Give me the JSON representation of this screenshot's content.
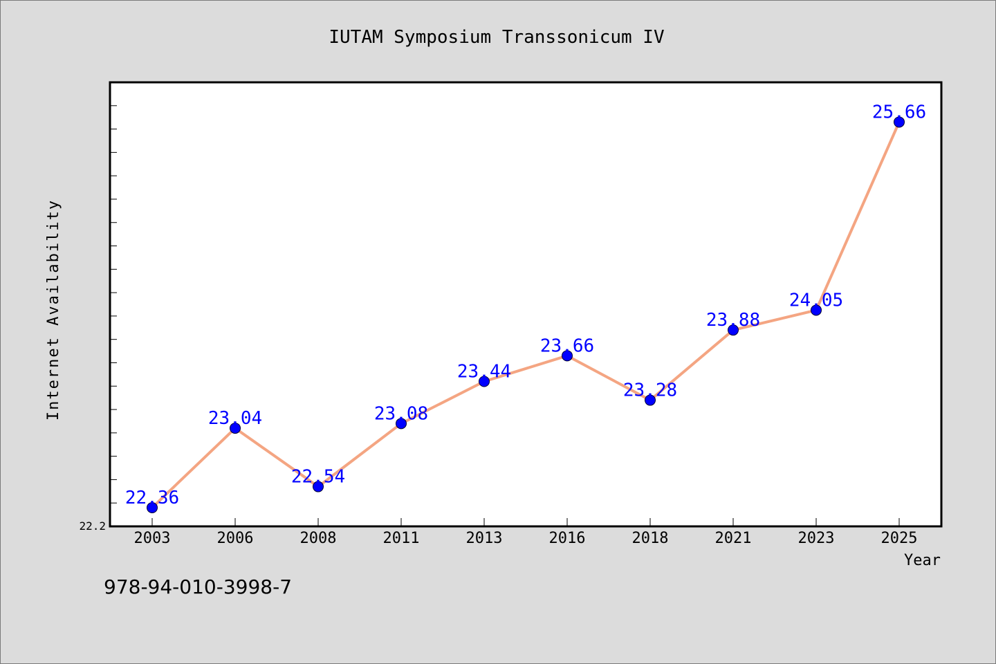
{
  "chart_data": {
    "type": "line",
    "title": "IUTAM Symposium Transsonicum IV",
    "xlabel": "Year",
    "ylabel": "Internet Availability",
    "categories": [
      "2003",
      "2006",
      "2008",
      "2011",
      "2013",
      "2016",
      "2018",
      "2021",
      "2023",
      "2025"
    ],
    "series": [
      {
        "values": [
          22.36,
          23.04,
          22.54,
          23.08,
          23.44,
          23.66,
          23.28,
          23.88,
          24.05,
          25.66
        ]
      }
    ],
    "ylim": [
      22.2,
      26.0
    ],
    "y_tick_labels": [
      "22.2"
    ],
    "grid": false,
    "line_color": "#f4a582",
    "marker_color": "#0000ff",
    "label_color": "#0000ff"
  },
  "footer": {
    "isbn": "978-94-010-3998-7"
  }
}
